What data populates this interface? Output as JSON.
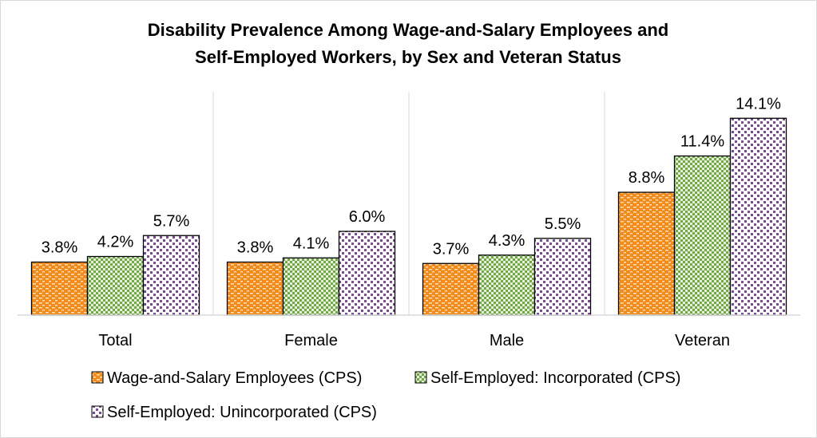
{
  "chart_data": {
    "type": "bar",
    "title": [
      "Disability Prevalence Among Wage-and-Salary Employees and",
      "Self-Employed Workers, by Sex and Veteran Status"
    ],
    "categories": [
      "Total",
      "Female",
      "Male",
      "Veteran"
    ],
    "series": [
      {
        "name": "Wage-and-Salary Employees (CPS)",
        "values": [
          3.8,
          3.8,
          3.7,
          8.8
        ],
        "labels": [
          "3.8%",
          "3.8%",
          "3.7%",
          "8.8%"
        ],
        "color": "#f28a1c",
        "pattern": "dashes"
      },
      {
        "name": "Self-Employed: Incorporated (CPS)",
        "values": [
          4.2,
          4.1,
          4.3,
          11.4
        ],
        "labels": [
          "4.2%",
          "4.1%",
          "4.3%",
          "11.4%"
        ],
        "color": "#70a845",
        "pattern": "checker"
      },
      {
        "name": "Self-Employed: Unincorporated (CPS)",
        "values": [
          5.7,
          6.0,
          5.5,
          14.1
        ],
        "labels": [
          "5.7%",
          "6.0%",
          "5.5%",
          "14.1%"
        ],
        "color": "#7a4a93",
        "pattern": "dots"
      }
    ],
    "ylim": [
      0,
      16
    ],
    "grid": "vertical category separators",
    "legend": "bottom",
    "unit": "%"
  }
}
